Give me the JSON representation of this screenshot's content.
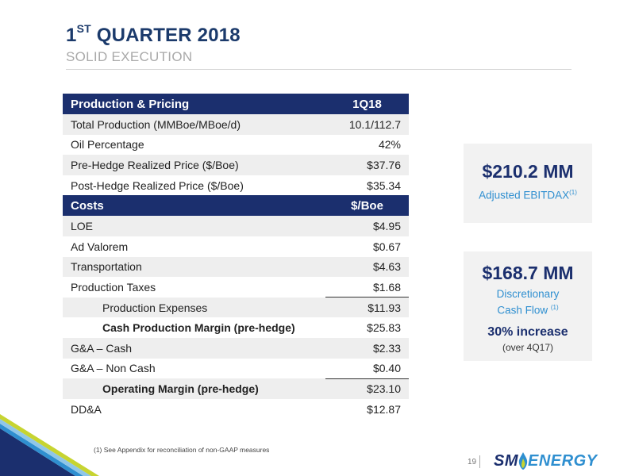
{
  "header": {
    "title_prefix": "1",
    "title_sup": "ST",
    "title_rest": " QUARTER 2018",
    "subtitle": "SOLID EXECUTION"
  },
  "table": {
    "production_header": {
      "label": "Production & Pricing",
      "value": "1Q18"
    },
    "production_rows": [
      {
        "label": "Total Production (MMBoe/MBoe/d)",
        "value": "10.1/112.7"
      },
      {
        "label": "Oil Percentage",
        "value": "42%"
      },
      {
        "label": "Pre-Hedge Realized Price ($/Boe)",
        "value": "$37.76"
      },
      {
        "label": "Post-Hedge Realized Price ($/Boe)",
        "value": "$35.34"
      }
    ],
    "costs_header": {
      "label": "Costs",
      "value": "$/Boe"
    },
    "cost_rows": [
      {
        "label": "LOE",
        "value": "$4.95"
      },
      {
        "label": "Ad Valorem",
        "value": "$0.67"
      },
      {
        "label": "Transportation",
        "value": "$4.63"
      },
      {
        "label": "Production Taxes",
        "value": "$1.68"
      },
      {
        "label": "Production Expenses",
        "value": "$11.93"
      },
      {
        "label": "Cash Production Margin (pre-hedge)",
        "value": "$25.83"
      },
      {
        "label": "G&A – Cash",
        "value": "$2.33"
      },
      {
        "label": "G&A – Non Cash",
        "value": "$0.40"
      },
      {
        "label": "Operating Margin (pre-hedge)",
        "value": "$23.10"
      },
      {
        "label": "DD&A",
        "value": "$12.87"
      }
    ]
  },
  "kpi1": {
    "value": "$210.2 MM",
    "label": "Adjusted EBITDAX",
    "sup": "(1)"
  },
  "kpi2": {
    "value": "$168.7 MM",
    "label_line1": "Discretionary",
    "label_line2": "Cash Flow ",
    "sup": "(1)",
    "increase": "30% increase",
    "increase_note": "(over 4Q17)"
  },
  "footer": {
    "footnote": "(1)  See Appendix for reconciliation of non-GAAP measures",
    "page_number": "19",
    "logo_sm": "SM",
    "logo_energy": "ENERGY"
  },
  "colors": {
    "navy": "#1b2f6e",
    "accent_blue": "#2f8fd0",
    "shade": "#eeeeee"
  }
}
